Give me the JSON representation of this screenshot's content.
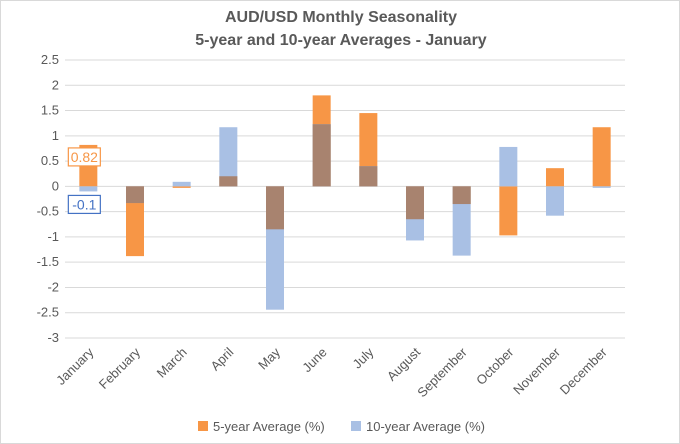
{
  "chart_data": {
    "type": "bar",
    "title": "AUD/USD Monthly Seasonality",
    "subtitle": "5-year and 10-year Averages - January",
    "categories": [
      "January",
      "February",
      "March",
      "April",
      "May",
      "June",
      "July",
      "August",
      "September",
      "October",
      "November",
      "December"
    ],
    "series": [
      {
        "name": "5-year Average (%)",
        "color": "#f79646",
        "values": [
          0.82,
          -1.38,
          -0.03,
          0.2,
          -0.85,
          1.8,
          1.45,
          -0.65,
          -0.35,
          -0.97,
          0.36,
          1.17
        ]
      },
      {
        "name": "10-year Average (%)",
        "color": "#a9c0e4",
        "values": [
          -0.1,
          -0.33,
          0.09,
          1.17,
          -2.44,
          1.23,
          0.4,
          -1.07,
          -1.37,
          0.78,
          -0.58,
          -0.03
        ]
      }
    ],
    "overlap_color": "#a8836f",
    "yticks": [
      "2.5",
      "2",
      "1.5",
      "1",
      "0.5",
      "0",
      "-0.5",
      "-1",
      "-1.5",
      "-2",
      "-2.5",
      "-3"
    ],
    "ylim": [
      -3,
      2.5
    ],
    "grid": true,
    "legend_position": "bottom",
    "annotations": [
      {
        "label": "0.82",
        "series": 0,
        "category": 0,
        "color": "#f79646"
      },
      {
        "label": "-0.1",
        "series": 1,
        "category": 0,
        "color": "#4472c4"
      }
    ]
  }
}
